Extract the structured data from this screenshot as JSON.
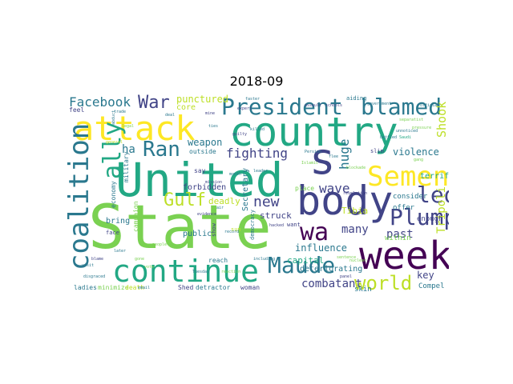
{
  "title": "2018-09",
  "colors": {
    "yellow": "#fde725",
    "light_green": "#7ad151",
    "green": "#22a884",
    "teal": "#2a788e",
    "blue": "#414487",
    "purple": "#440154"
  },
  "words": [
    {
      "text": "State",
      "color": "#7ad151"
    },
    {
      "text": "United",
      "color": "#22a884"
    },
    {
      "text": "country",
      "color": "#22a884"
    },
    {
      "text": "body",
      "color": "#414487"
    },
    {
      "text": "week",
      "color": "#440154"
    },
    {
      "text": "s",
      "color": "#414487"
    },
    {
      "text": "attack",
      "color": "#fde725"
    },
    {
      "text": "continue",
      "color": "#22a884"
    },
    {
      "text": "President",
      "color": "#2a788e"
    },
    {
      "text": "blamed",
      "color": "#2a788e"
    },
    {
      "text": "coalition",
      "color": "#2a788e"
    },
    {
      "text": "Semen",
      "color": "#fde725"
    },
    {
      "text": "led",
      "color": "#414487"
    },
    {
      "text": "Plump",
      "color": "#414487"
    },
    {
      "text": "wa",
      "color": "#440154"
    },
    {
      "text": "Maude",
      "color": "#2a788e"
    },
    {
      "text": "world",
      "color": "#bddf26"
    },
    {
      "text": "ally",
      "color": "#22a884"
    },
    {
      "text": "Ran",
      "color": "#2a788e"
    },
    {
      "text": "War",
      "color": "#414487"
    },
    {
      "text": "Gulf",
      "color": "#bddf26"
    },
    {
      "text": "Facebook",
      "color": "#2a788e"
    },
    {
      "text": "new",
      "color": "#414487"
    },
    {
      "text": "wave",
      "color": "#414487"
    },
    {
      "text": "fighting",
      "color": "#414487"
    },
    {
      "text": "huge",
      "color": "#2a788e"
    },
    {
      "text": "Shook",
      "color": "#bddf26"
    },
    {
      "text": "Tripoli",
      "color": "#bddf26"
    },
    {
      "text": "combatant",
      "color": "#414487"
    },
    {
      "text": "many",
      "color": "#414487"
    },
    {
      "text": "past",
      "color": "#414487"
    },
    {
      "text": "ha",
      "color": "#2a788e"
    },
    {
      "text": "violence",
      "color": "#2a788e"
    },
    {
      "text": "influence",
      "color": "#2a788e"
    },
    {
      "text": "punctured",
      "color": "#bddf26"
    },
    {
      "text": "weapon",
      "color": "#2a788e"
    },
    {
      "text": "key",
      "color": "#414487"
    },
    {
      "text": "struck",
      "color": "#414487"
    },
    {
      "text": "capital",
      "color": "#22a884"
    },
    {
      "text": "Tibia",
      "color": "#bddf26"
    },
    {
      "text": "deadly",
      "color": "#bddf26"
    },
    {
      "text": "terrified",
      "color": "#22a884"
    },
    {
      "text": "forbidden",
      "color": "#414487"
    },
    {
      "text": "Secretary",
      "color": "#2a788e"
    },
    {
      "text": "core",
      "color": "#bddf26"
    },
    {
      "text": "public",
      "color": "#2a788e"
    },
    {
      "text": "bring",
      "color": "#2a788e"
    },
    {
      "text": "deteriorating",
      "color": "#2a788e"
    },
    {
      "text": "consider",
      "color": "#2a788e"
    },
    {
      "text": "offer",
      "color": "#2a788e"
    },
    {
      "text": "enough",
      "color": "#414487"
    },
    {
      "text": "skin",
      "color": "#2a788e"
    },
    {
      "text": "within",
      "color": "#7ad151"
    },
    {
      "text": "Compel",
      "color": "#2a788e"
    },
    {
      "text": "ladies",
      "color": "#2a788e"
    },
    {
      "text": "minimize",
      "color": "#7ad151"
    },
    {
      "text": "death",
      "color": "#bddf26"
    },
    {
      "text": "Shed",
      "color": "#414487"
    },
    {
      "text": "detractor",
      "color": "#2a788e"
    },
    {
      "text": "woman",
      "color": "#414487"
    },
    {
      "text": "reach",
      "color": "#2a788e"
    },
    {
      "text": "campaign",
      "color": "#7ad151"
    },
    {
      "text": "economy",
      "color": "#2a788e"
    },
    {
      "text": "military",
      "color": "#2a788e"
    },
    {
      "text": "feel",
      "color": "#414487"
    },
    {
      "text": "outside",
      "color": "#2a788e"
    },
    {
      "text": "say",
      "color": "#414487"
    },
    {
      "text": "place",
      "color": "#7ad151"
    },
    {
      "text": "aiding",
      "color": "#2a788e"
    },
    {
      "text": "face",
      "color": "#414487"
    },
    {
      "text": "show",
      "color": "#414487"
    },
    {
      "text": "democracy",
      "color": "#2a788e"
    },
    {
      "text": "sun",
      "color": "#bddf26"
    },
    {
      "text": "want",
      "color": "#414487"
    },
    {
      "text": "slim",
      "color": "#414487"
    },
    {
      "text": "government",
      "color": "#2a788e"
    },
    {
      "text": "killed",
      "color": "#2a788e"
    },
    {
      "text": "hacked",
      "color": "#414487"
    },
    {
      "text": "blame",
      "color": "#414487"
    },
    {
      "text": "Tuesday",
      "color": "#2a788e"
    },
    {
      "text": "disgraced",
      "color": "#2a788e"
    },
    {
      "text": "including",
      "color": "#2a788e"
    },
    {
      "text": "panel",
      "color": "#414487"
    },
    {
      "text": "email",
      "color": "#2a788e"
    },
    {
      "text": "official",
      "color": "#2a788e"
    },
    {
      "text": "schools",
      "color": "#414487"
    },
    {
      "text": "Persian",
      "color": "#2a788e"
    },
    {
      "text": "Islamic",
      "color": "#7ad151"
    },
    {
      "text": "revelation",
      "color": "#414487"
    },
    {
      "text": "people",
      "color": "#7ad151"
    },
    {
      "text": "trade",
      "color": "#2a788e"
    },
    {
      "text": "deal",
      "color": "#2a788e"
    },
    {
      "text": "expert",
      "color": "#414487"
    },
    {
      "text": "mine",
      "color": "#414487"
    },
    {
      "text": "record",
      "color": "#2a788e"
    },
    {
      "text": "legal",
      "color": "#7ad151"
    },
    {
      "text": "abduct",
      "color": "#2a788e"
    },
    {
      "text": "general",
      "color": "#bddf26"
    },
    {
      "text": "later",
      "color": "#2a788e"
    },
    {
      "text": "reaction",
      "color": "#7ad151"
    },
    {
      "text": "assault",
      "color": "#414487"
    },
    {
      "text": "pressure",
      "color": "#7ad151"
    },
    {
      "text": "unnoticed",
      "color": "#2a788e"
    },
    {
      "text": "separatist",
      "color": "#7ad151"
    },
    {
      "text": "Saudi",
      "color": "#22a884"
    },
    {
      "text": "faster",
      "color": "#2a788e"
    },
    {
      "text": "nuclear",
      "color": "#7ad151"
    },
    {
      "text": "guilty",
      "color": "#414487"
    },
    {
      "text": "ties",
      "color": "#2a788e"
    },
    {
      "text": "month",
      "color": "#2a788e"
    },
    {
      "text": "gang",
      "color": "#7ad151"
    },
    {
      "text": "battled",
      "color": "#2a788e"
    },
    {
      "text": "sentence",
      "color": "#7ad151"
    },
    {
      "text": "evidence",
      "color": "#414487"
    },
    {
      "text": "air",
      "color": "#2a788e"
    },
    {
      "text": "gone",
      "color": "#7ad151"
    },
    {
      "text": "vote",
      "color": "#7ad151"
    },
    {
      "text": "leader",
      "color": "#2a788e"
    },
    {
      "text": "blockade",
      "color": "#7ad151"
    },
    {
      "text": "visit",
      "color": "#2a788e"
    },
    {
      "text": "mission",
      "color": "#414487"
    },
    {
      "text": "flee",
      "color": "#2a788e"
    }
  ]
}
